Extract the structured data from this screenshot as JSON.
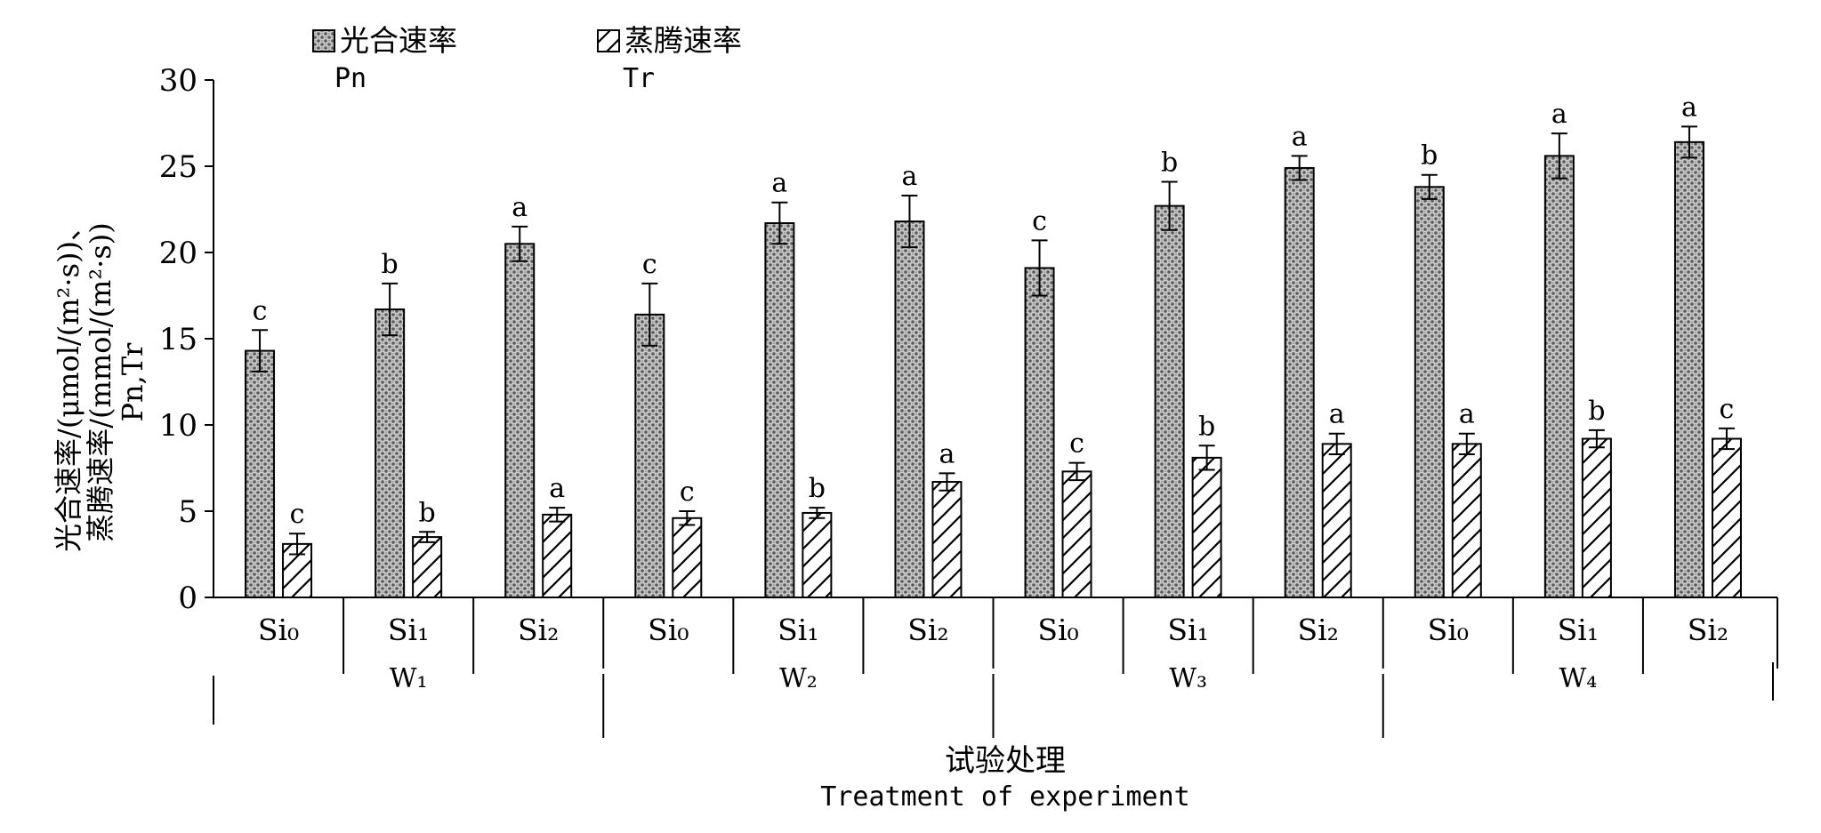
{
  "chart_data": {
    "type": "bar",
    "ylabel_lines": [
      "光合速率/(μmol/(m²·s))、",
      "蒸腾速率/(mmol/(m²·s))",
      "Pn,Tr"
    ],
    "xlabel": "试验处理",
    "xlabel_en": "Treatment of experiment",
    "ylim": [
      0,
      30
    ],
    "yticks": [
      0,
      5,
      10,
      15,
      20,
      25,
      30
    ],
    "legend_position": "top-left",
    "grid": false,
    "categories": [
      "Si₀",
      "Si₁",
      "Si₂",
      "Si₀",
      "Si₁",
      "Si₂",
      "Si₀",
      "Si₁",
      "Si₂",
      "Si₀",
      "Si₁",
      "Si₂"
    ],
    "groups": [
      {
        "label": "W₁",
        "span": [
          0,
          2
        ]
      },
      {
        "label": "W₂",
        "span": [
          3,
          5
        ]
      },
      {
        "label": "W₃",
        "span": [
          6,
          8
        ]
      },
      {
        "label": "W₄",
        "span": [
          9,
          11
        ]
      }
    ],
    "series": [
      {
        "name": "光合速率",
        "name_en": "Pn",
        "pattern": "crosshatch",
        "values": [
          14.3,
          16.7,
          20.5,
          16.4,
          21.7,
          21.8,
          19.1,
          22.7,
          24.9,
          23.8,
          25.6,
          26.4
        ],
        "errors": [
          1.2,
          1.5,
          1.0,
          1.8,
          1.2,
          1.5,
          1.6,
          1.4,
          0.7,
          0.7,
          1.3,
          0.9
        ],
        "sig": [
          "c",
          "b",
          "a",
          "c",
          "a",
          "a",
          "c",
          "b",
          "a",
          "b",
          "a",
          "a"
        ]
      },
      {
        "name": "蒸腾速率",
        "name_en": "Tr",
        "pattern": "diagonal",
        "values": [
          3.1,
          3.5,
          4.8,
          4.6,
          4.9,
          6.7,
          7.3,
          8.1,
          8.9,
          8.9,
          9.2,
          9.2
        ],
        "errors": [
          0.6,
          0.3,
          0.4,
          0.4,
          0.3,
          0.5,
          0.5,
          0.7,
          0.6,
          0.6,
          0.5,
          0.6
        ],
        "sig": [
          "c",
          "b",
          "a",
          "c",
          "b",
          "a",
          "c",
          "b",
          "a",
          "a",
          "b",
          "c"
        ]
      }
    ]
  }
}
